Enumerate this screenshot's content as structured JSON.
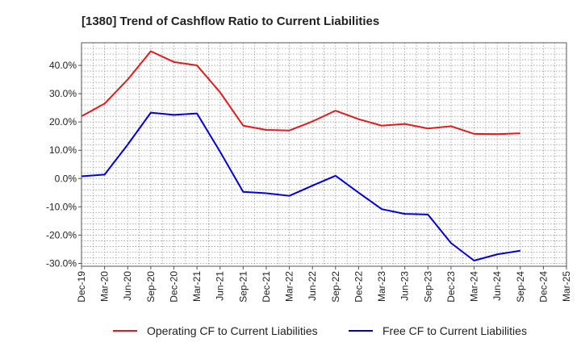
{
  "chart_data": {
    "type": "line",
    "title": "[1380]  Trend of Cashflow Ratio to Current Liabilities",
    "xlabel": "",
    "ylabel": "",
    "categories": [
      "Dec-19",
      "Mar-20",
      "Jun-20",
      "Sep-20",
      "Dec-20",
      "Mar-21",
      "Jun-21",
      "Sep-21",
      "Dec-21",
      "Mar-22",
      "Jun-22",
      "Sep-22",
      "Dec-22",
      "Mar-23",
      "Jun-23",
      "Sep-23",
      "Dec-23",
      "Mar-24",
      "Jun-24",
      "Sep-24",
      "Dec-24",
      "Mar-25"
    ],
    "ylim": [
      -31,
      48
    ],
    "yticks": [
      -30,
      -20,
      -10,
      0,
      10,
      20,
      30,
      40
    ],
    "ytick_labels": [
      "-30.0%",
      "-20.0%",
      "-10.0%",
      "0.0%",
      "10.0%",
      "20.0%",
      "30.0%",
      "40.0%"
    ],
    "grid": true,
    "legend_position": "bottom",
    "series": [
      {
        "name": "Operating CF to Current Liabilities",
        "color": "#e31a1c",
        "values": [
          22.0,
          26.5,
          35.0,
          45.0,
          41.2,
          40.0,
          30.5,
          18.7,
          17.2,
          17.0,
          20.2,
          24.0,
          21.0,
          18.7,
          19.3,
          17.7,
          18.5,
          15.8,
          15.7,
          16.0,
          null,
          null
        ]
      },
      {
        "name": "Free CF to Current Liabilities",
        "color": "#0000dd",
        "values": [
          0.8,
          1.4,
          12.0,
          23.3,
          22.5,
          23.0,
          9.5,
          -4.7,
          -5.2,
          -6.1,
          -2.5,
          1.0,
          -5.0,
          -10.8,
          -12.5,
          -12.7,
          -22.8,
          -29.0,
          -26.8,
          -25.5,
          null,
          null
        ]
      }
    ]
  }
}
